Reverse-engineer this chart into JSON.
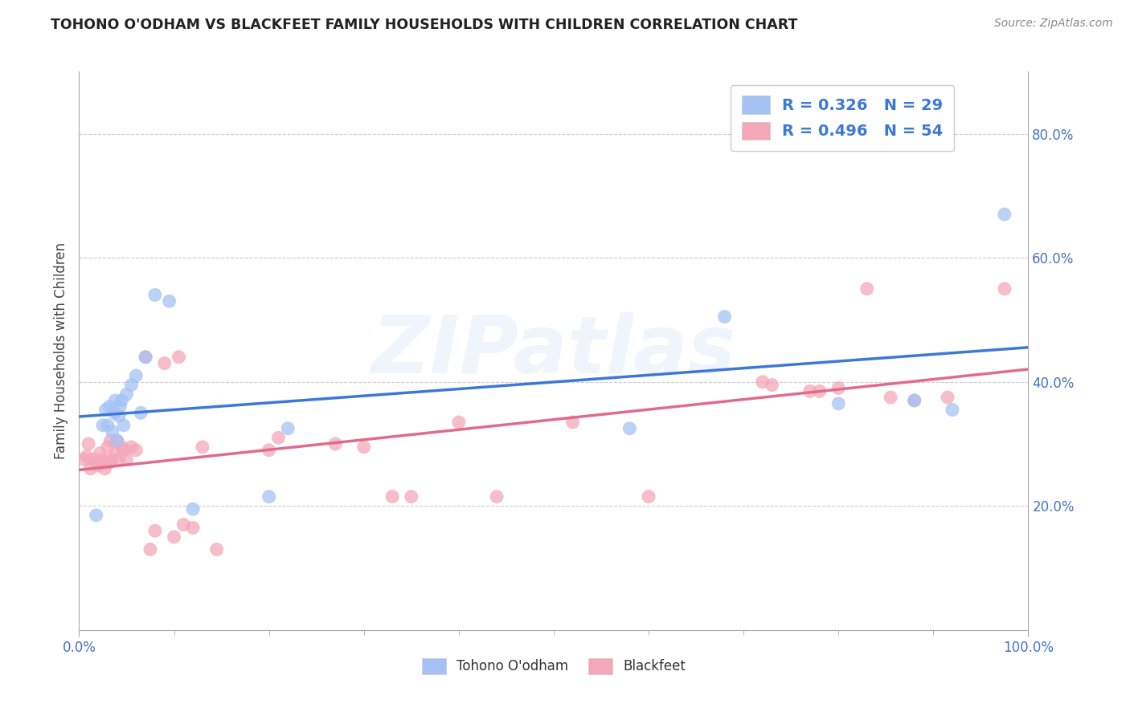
{
  "title": "TOHONO O'ODHAM VS BLACKFEET FAMILY HOUSEHOLDS WITH CHILDREN CORRELATION CHART",
  "source": "Source: ZipAtlas.com",
  "ylabel": "Family Households with Children",
  "watermark": "ZIPatlas",
  "tohono_R": 0.326,
  "tohono_N": 29,
  "blackfeet_R": 0.496,
  "blackfeet_N": 54,
  "tohono_color": "#a4c2f4",
  "blackfeet_color": "#f4a7b9",
  "tohono_line_color": "#3c78d8",
  "blackfeet_line_color": "#e06c8a",
  "legend_text_color": "#3c78d8",
  "tick_color": "#4472c4",
  "ylabel_color": "#444444",
  "title_color": "#222222",
  "source_color": "#888888",
  "grid_color": "#cccccc",
  "xlim": [
    0.0,
    1.0
  ],
  "ylim": [
    0.0,
    0.9
  ],
  "xtick_positions": [
    0.0,
    1.0
  ],
  "xtick_labels": [
    "0.0%",
    "100.0%"
  ],
  "ytick_positions": [
    0.2,
    0.4,
    0.6,
    0.8
  ],
  "ytick_labels": [
    "20.0%",
    "40.0%",
    "60.0%",
    "80.0%"
  ],
  "tohono_x": [
    0.018,
    0.025,
    0.028,
    0.03,
    0.032,
    0.035,
    0.037,
    0.038,
    0.04,
    0.042,
    0.043,
    0.045,
    0.047,
    0.05,
    0.055,
    0.06,
    0.065,
    0.07,
    0.08,
    0.095,
    0.12,
    0.2,
    0.22,
    0.58,
    0.68,
    0.8,
    0.88,
    0.92,
    0.975
  ],
  "tohono_y": [
    0.185,
    0.33,
    0.355,
    0.33,
    0.36,
    0.32,
    0.35,
    0.37,
    0.305,
    0.345,
    0.36,
    0.37,
    0.33,
    0.38,
    0.395,
    0.41,
    0.35,
    0.44,
    0.54,
    0.53,
    0.195,
    0.215,
    0.325,
    0.325,
    0.505,
    0.365,
    0.37,
    0.355,
    0.67
  ],
  "blackfeet_x": [
    0.005,
    0.008,
    0.01,
    0.012,
    0.015,
    0.018,
    0.02,
    0.022,
    0.024,
    0.025,
    0.027,
    0.028,
    0.03,
    0.032,
    0.033,
    0.035,
    0.038,
    0.04,
    0.042,
    0.045,
    0.048,
    0.05,
    0.055,
    0.06,
    0.07,
    0.075,
    0.08,
    0.09,
    0.1,
    0.105,
    0.11,
    0.12,
    0.13,
    0.145,
    0.2,
    0.21,
    0.27,
    0.3,
    0.33,
    0.35,
    0.4,
    0.44,
    0.52,
    0.6,
    0.72,
    0.73,
    0.77,
    0.78,
    0.8,
    0.83,
    0.855,
    0.88,
    0.915,
    0.975
  ],
  "blackfeet_y": [
    0.275,
    0.28,
    0.3,
    0.26,
    0.275,
    0.27,
    0.265,
    0.285,
    0.27,
    0.275,
    0.26,
    0.27,
    0.295,
    0.27,
    0.305,
    0.275,
    0.285,
    0.305,
    0.275,
    0.295,
    0.29,
    0.275,
    0.295,
    0.29,
    0.44,
    0.13,
    0.16,
    0.43,
    0.15,
    0.44,
    0.17,
    0.165,
    0.295,
    0.13,
    0.29,
    0.31,
    0.3,
    0.295,
    0.215,
    0.215,
    0.335,
    0.215,
    0.335,
    0.215,
    0.4,
    0.395,
    0.385,
    0.385,
    0.39,
    0.55,
    0.375,
    0.37,
    0.375,
    0.55
  ]
}
